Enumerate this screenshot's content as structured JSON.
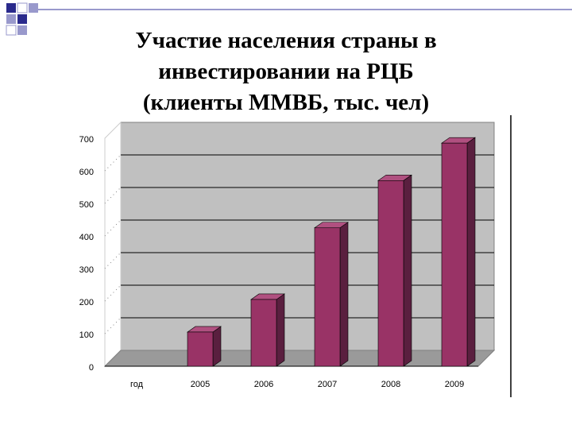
{
  "chart_data": {
    "type": "bar3d",
    "title_lines": [
      "Участие населения страны в",
      "инвестировании на РЦБ",
      "(клиенты ММВБ, тыс. чел)"
    ],
    "categories": [
      "год",
      "2005",
      "2006",
      "2007",
      "2008",
      "2009"
    ],
    "values": [
      null,
      105,
      205,
      425,
      570,
      685
    ],
    "color": "#993366",
    "ylim": [
      0,
      700
    ],
    "yticks": [
      0,
      100,
      200,
      300,
      400,
      500,
      600,
      700
    ],
    "grid": true
  }
}
